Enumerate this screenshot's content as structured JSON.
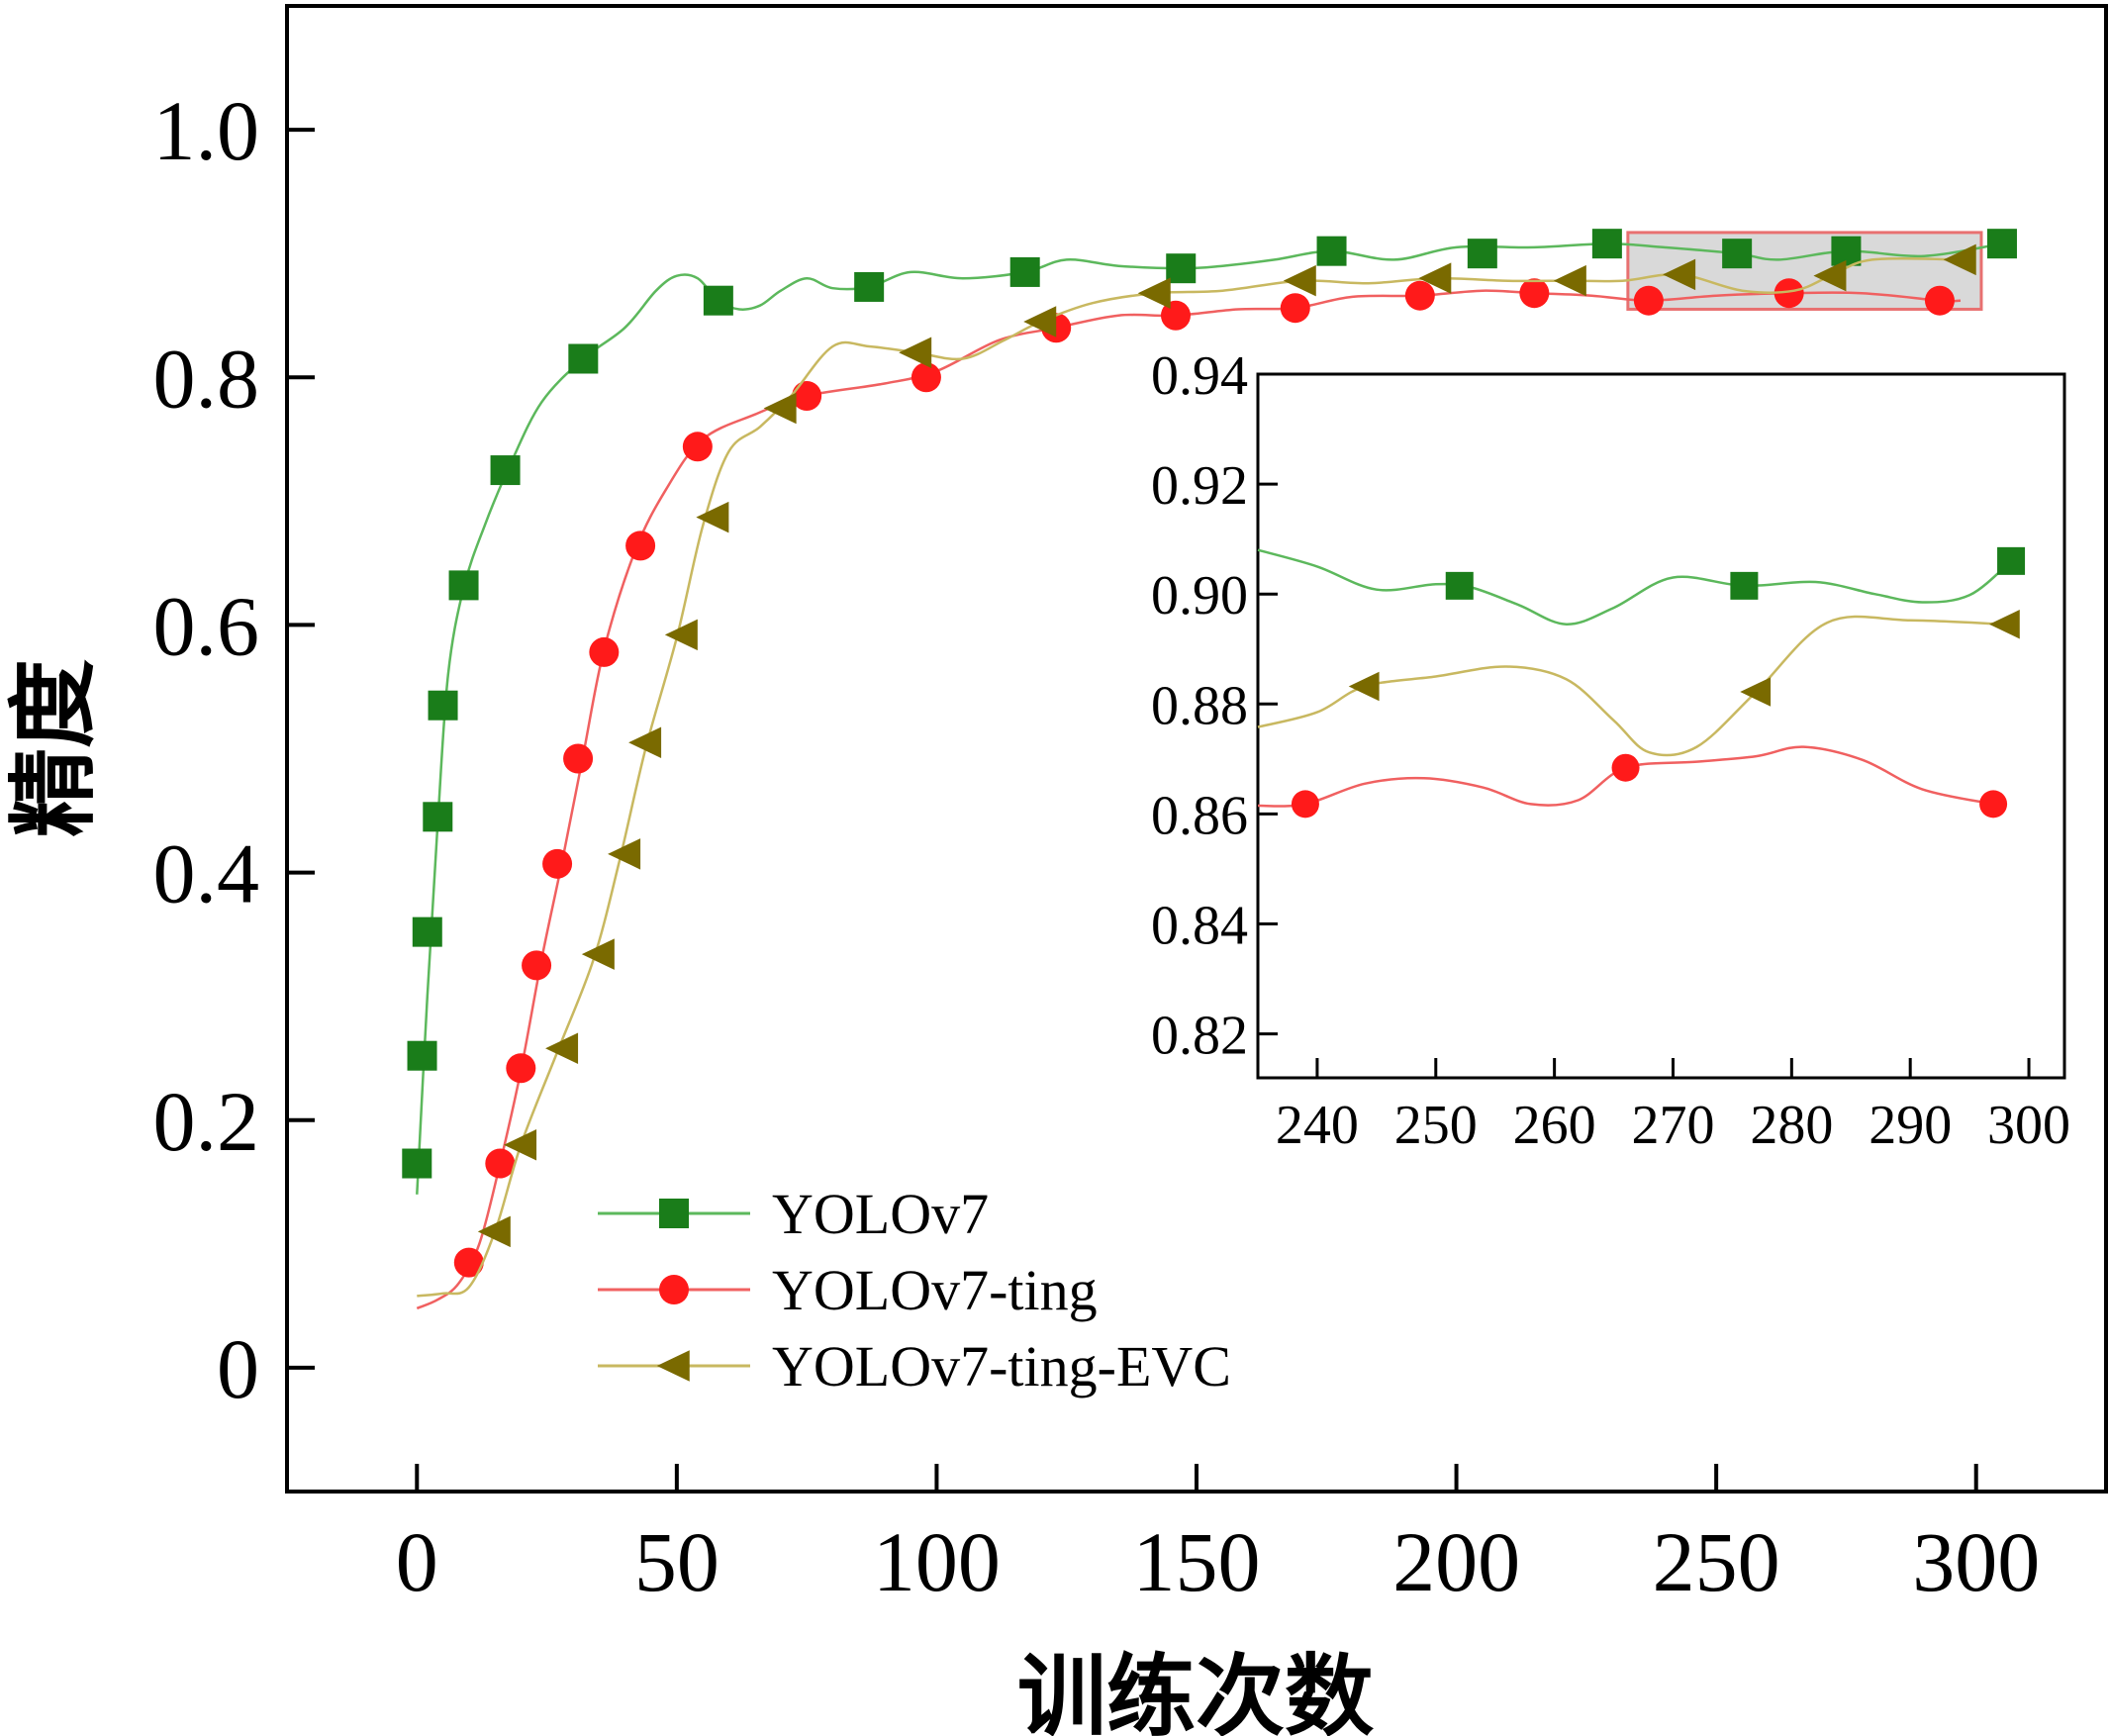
{
  "chart_data": [
    {
      "type": "line",
      "xlabel": "训练次数",
      "ylabel": "精度",
      "xlim": [
        -25,
        325
      ],
      "ylim": [
        -0.1,
        1.1
      ],
      "xticks": [
        0,
        50,
        100,
        150,
        200,
        250,
        300
      ],
      "yticks": [
        0,
        0.2,
        0.4,
        0.6,
        0.8,
        1.0
      ],
      "xtick_labels": [
        "0",
        "50",
        "100",
        "150",
        "200",
        "250",
        "300"
      ],
      "ytick_labels": [
        "0",
        "0.2",
        "0.4",
        "0.6",
        "0.8",
        "1.0"
      ],
      "legend_position": "center",
      "grid": false,
      "series": [
        {
          "name": "YOLOv7",
          "color": "#1a7d1a",
          "line_color": "#5cb85c",
          "marker": "square",
          "points": [
            [
              0,
              0.165
            ],
            [
              1,
              0.252
            ],
            [
              2,
              0.352
            ],
            [
              4,
              0.445
            ],
            [
              5,
              0.535
            ],
            [
              9,
              0.632
            ],
            [
              17,
              0.725
            ],
            [
              32,
              0.815
            ],
            [
              58,
              0.862
            ],
            [
              87,
              0.873
            ],
            [
              117,
              0.885
            ],
            [
              147,
              0.888
            ],
            [
              176,
              0.902
            ],
            [
              205,
              0.9
            ],
            [
              229,
              0.908
            ],
            [
              254,
              0.9
            ],
            [
              275,
              0.902
            ],
            [
              305,
              0.908
            ]
          ],
          "line": [
            [
              0,
              0.14
            ],
            [
              2,
              0.3
            ],
            [
              4,
              0.44
            ],
            [
              6,
              0.56
            ],
            [
              9,
              0.63
            ],
            [
              13,
              0.68
            ],
            [
              18,
              0.73
            ],
            [
              24,
              0.78
            ],
            [
              32,
              0.815
            ],
            [
              40,
              0.84
            ],
            [
              46,
              0.87
            ],
            [
              50,
              0.882
            ],
            [
              54,
              0.88
            ],
            [
              58,
              0.862
            ],
            [
              62,
              0.855
            ],
            [
              66,
              0.858
            ],
            [
              70,
              0.87
            ],
            [
              75,
              0.88
            ],
            [
              80,
              0.872
            ],
            [
              87,
              0.873
            ],
            [
              95,
              0.885
            ],
            [
              105,
              0.88
            ],
            [
              117,
              0.885
            ],
            [
              125,
              0.895
            ],
            [
              135,
              0.89
            ],
            [
              147,
              0.888
            ],
            [
              155,
              0.89
            ],
            [
              165,
              0.895
            ],
            [
              176,
              0.902
            ],
            [
              188,
              0.895
            ],
            [
              200,
              0.905
            ],
            [
              215,
              0.905
            ],
            [
              229,
              0.908
            ],
            [
              240,
              0.905
            ],
            [
              254,
              0.9
            ],
            [
              262,
              0.895
            ],
            [
              275,
              0.902
            ],
            [
              290,
              0.898
            ],
            [
              305,
              0.908
            ]
          ]
        },
        {
          "name": "YOLOv7-ting",
          "color": "#ff1a1a",
          "line_color": "#f06060",
          "marker": "circle",
          "points": [
            [
              10,
              0.085
            ],
            [
              16,
              0.165
            ],
            [
              20,
              0.242
            ],
            [
              23,
              0.325
            ],
            [
              27,
              0.407
            ],
            [
              31,
              0.492
            ],
            [
              36,
              0.578
            ],
            [
              43,
              0.664
            ],
            [
              54,
              0.744
            ],
            [
              75,
              0.785
            ],
            [
              98,
              0.8
            ],
            [
              123,
              0.84
            ],
            [
              146,
              0.85
            ],
            [
              169,
              0.856
            ],
            [
              193,
              0.866
            ],
            [
              215,
              0.868
            ],
            [
              237,
              0.862
            ],
            [
              264,
              0.868
            ],
            [
              293,
              0.862
            ]
          ],
          "line": [
            [
              0,
              0.048
            ],
            [
              4,
              0.055
            ],
            [
              8,
              0.068
            ],
            [
              12,
              0.1
            ],
            [
              16,
              0.165
            ],
            [
              20,
              0.24
            ],
            [
              24,
              0.33
            ],
            [
              28,
              0.41
            ],
            [
              32,
              0.495
            ],
            [
              36,
              0.58
            ],
            [
              42,
              0.66
            ],
            [
              48,
              0.71
            ],
            [
              55,
              0.75
            ],
            [
              65,
              0.77
            ],
            [
              75,
              0.785
            ],
            [
              90,
              0.795
            ],
            [
              100,
              0.805
            ],
            [
              112,
              0.83
            ],
            [
              123,
              0.84
            ],
            [
              135,
              0.85
            ],
            [
              146,
              0.85
            ],
            [
              158,
              0.855
            ],
            [
              169,
              0.856
            ],
            [
              180,
              0.865
            ],
            [
              193,
              0.866
            ],
            [
              205,
              0.87
            ],
            [
              215,
              0.868
            ],
            [
              226,
              0.866
            ],
            [
              237,
              0.862
            ],
            [
              250,
              0.866
            ],
            [
              264,
              0.868
            ],
            [
              278,
              0.868
            ],
            [
              293,
              0.862
            ],
            [
              297,
              0.862
            ]
          ]
        },
        {
          "name": "YOLOv7-ting-EVC",
          "color": "#7a6a00",
          "line_color": "#c8b860",
          "marker": "triangle-left",
          "points": [
            [
              15,
              0.11
            ],
            [
              20,
              0.18
            ],
            [
              28,
              0.258
            ],
            [
              35,
              0.334
            ],
            [
              40,
              0.415
            ],
            [
              44,
              0.505
            ],
            [
              51,
              0.592
            ],
            [
              57,
              0.687
            ],
            [
              70,
              0.775
            ],
            [
              96,
              0.82
            ],
            [
              120,
              0.845
            ],
            [
              142,
              0.868
            ],
            [
              170,
              0.878
            ],
            [
              196,
              0.88
            ],
            [
              222,
              0.878
            ],
            [
              243,
              0.883
            ],
            [
              272,
              0.882
            ],
            [
              297,
              0.895
            ]
          ],
          "line": [
            [
              0,
              0.058
            ],
            [
              5,
              0.06
            ],
            [
              10,
              0.065
            ],
            [
              15,
              0.11
            ],
            [
              20,
              0.18
            ],
            [
              27,
              0.255
            ],
            [
              34,
              0.33
            ],
            [
              39,
              0.41
            ],
            [
              44,
              0.5
            ],
            [
              50,
              0.59
            ],
            [
              55,
              0.68
            ],
            [
              60,
              0.74
            ],
            [
              66,
              0.76
            ],
            [
              72,
              0.785
            ],
            [
              80,
              0.825
            ],
            [
              87,
              0.825
            ],
            [
              96,
              0.82
            ],
            [
              105,
              0.815
            ],
            [
              113,
              0.83
            ],
            [
              120,
              0.845
            ],
            [
              130,
              0.86
            ],
            [
              142,
              0.868
            ],
            [
              155,
              0.87
            ],
            [
              170,
              0.878
            ],
            [
              183,
              0.876
            ],
            [
              196,
              0.88
            ],
            [
              210,
              0.878
            ],
            [
              222,
              0.878
            ],
            [
              232,
              0.878
            ],
            [
              243,
              0.883
            ],
            [
              255,
              0.87
            ],
            [
              265,
              0.87
            ],
            [
              272,
              0.882
            ],
            [
              280,
              0.895
            ],
            [
              297,
              0.895
            ]
          ]
        }
      ]
    },
    {
      "type": "line",
      "role": "inset",
      "xlim": [
        235,
        303
      ],
      "ylim": [
        0.812,
        0.94
      ],
      "xticks": [
        240,
        250,
        260,
        270,
        280,
        290,
        300
      ],
      "yticks": [
        0.82,
        0.84,
        0.86,
        0.88,
        0.9,
        0.92,
        0.94
      ],
      "xtick_labels": [
        "240",
        "250",
        "260",
        "270",
        "280",
        "290",
        "300"
      ],
      "ytick_labels": [
        "0.82",
        "0.84",
        "0.86",
        "0.88",
        "0.90",
        "0.92",
        "0.94"
      ],
      "highlight_box": {
        "x": [
          233,
          301
        ],
        "y": [
          0.855,
          0.917
        ],
        "fill": "#d9d9d9",
        "stroke": "#e87070"
      },
      "series": [
        {
          "name": "YOLOv7",
          "color": "#1a7d1a",
          "line_color": "#5cb85c",
          "marker": "square",
          "points": [
            [
              252,
              0.9015
            ],
            [
              276,
              0.9015
            ],
            [
              298.5,
              0.906
            ]
          ],
          "line": [
            [
              235,
              0.908
            ],
            [
              240,
              0.905
            ],
            [
              245,
              0.9008
            ],
            [
              250,
              0.9018
            ],
            [
              253,
              0.9012
            ],
            [
              257,
              0.898
            ],
            [
              261,
              0.8945
            ],
            [
              265,
              0.8975
            ],
            [
              270,
              0.903
            ],
            [
              276,
              0.9015
            ],
            [
              282,
              0.9022
            ],
            [
              287,
              0.9
            ],
            [
              291,
              0.8985
            ],
            [
              295,
              0.8998
            ],
            [
              298.5,
              0.906
            ]
          ]
        },
        {
          "name": "YOLOv7-ting",
          "color": "#ff1a1a",
          "line_color": "#f06060",
          "marker": "circle",
          "points": [
            [
              239,
              0.8618
            ],
            [
              266,
              0.8684
            ],
            [
              297,
              0.8618
            ]
          ],
          "line": [
            [
              235,
              0.8615
            ],
            [
              239,
              0.8618
            ],
            [
              244,
              0.8655
            ],
            [
              249,
              0.8665
            ],
            [
              254,
              0.8648
            ],
            [
              258,
              0.8618
            ],
            [
              262,
              0.8625
            ],
            [
              266,
              0.8684
            ],
            [
              272,
              0.8695
            ],
            [
              277,
              0.8705
            ],
            [
              281,
              0.8722
            ],
            [
              286,
              0.8698
            ],
            [
              291,
              0.8645
            ],
            [
              297,
              0.8618
            ]
          ]
        },
        {
          "name": "YOLOv7-ting-EVC",
          "color": "#7a6a00",
          "line_color": "#c8b860",
          "marker": "triangle-left",
          "points": [
            [
              244,
              0.8832
            ],
            [
              277,
              0.8822
            ],
            [
              298,
              0.8945
            ]
          ],
          "line": [
            [
              235,
              0.8758
            ],
            [
              240,
              0.8785
            ],
            [
              244,
              0.8832
            ],
            [
              250,
              0.885
            ],
            [
              256,
              0.8868
            ],
            [
              261,
              0.8845
            ],
            [
              265,
              0.877
            ],
            [
              268,
              0.8712
            ],
            [
              272,
              0.8722
            ],
            [
              277,
              0.8822
            ],
            [
              283,
              0.8948
            ],
            [
              290,
              0.8952
            ],
            [
              298,
              0.8945
            ]
          ]
        }
      ]
    }
  ]
}
